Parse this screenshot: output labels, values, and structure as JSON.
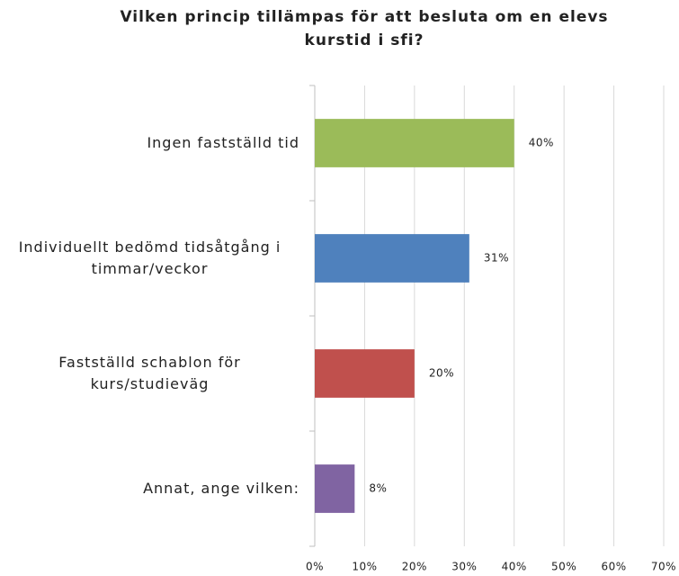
{
  "chart_data": {
    "type": "barh",
    "title": "Vilken princip tillämpas för att besluta om en elevs kurstid i sfi?",
    "categories": [
      "Ingen fastställd tid",
      "Individuellt bedömd tidsåtgång i timmar/veckor",
      "Fastställd schablon för kurs/studieväg",
      "Annat, ange vilken:"
    ],
    "values": [
      40,
      31,
      20,
      8
    ],
    "value_labels": [
      "40%",
      "31%",
      "20%",
      "8%"
    ],
    "colors": [
      "#9bbb59",
      "#4f81bd",
      "#c0504d",
      "#8064a2"
    ],
    "xlim": [
      0,
      70
    ],
    "xticks": [
      {
        "value": 0,
        "label": "0%"
      },
      {
        "value": 10,
        "label": "10%"
      },
      {
        "value": 20,
        "label": "20%"
      },
      {
        "value": 30,
        "label": "30%"
      },
      {
        "value": 40,
        "label": "40%"
      },
      {
        "value": 50,
        "label": "50%"
      },
      {
        "value": 60,
        "label": "60%"
      },
      {
        "value": 70,
        "label": "70%"
      }
    ],
    "grid": true
  }
}
